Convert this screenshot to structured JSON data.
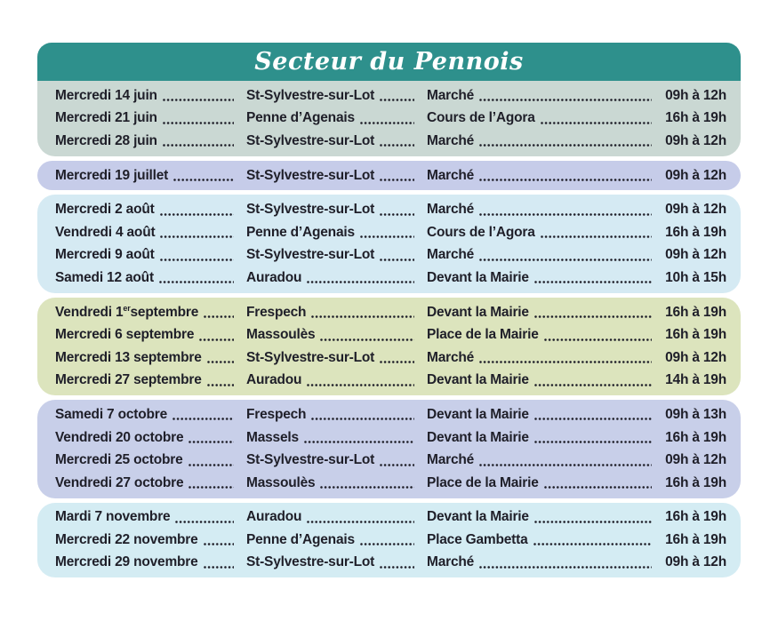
{
  "page": {
    "title": "Secteur du Pennois"
  },
  "colors": {
    "header_bg": "#2e908c",
    "title_text": "#ffffff",
    "row_text": "#1f1f29"
  },
  "sections": [
    {
      "month": "juin",
      "color": "#cad8d3",
      "rows": [
        {
          "date": "Mercredi 14 juin",
          "date_sup": "",
          "date_rest": "",
          "location": "St-Sylvestre-sur-Lot",
          "place": "Marché",
          "time": "09h à 12h"
        },
        {
          "date": "Mercredi 21 juin",
          "date_sup": "",
          "date_rest": "",
          "location": "Penne d’Agenais",
          "place": "Cours de l’Agora",
          "time": "16h à 19h"
        },
        {
          "date": "Mercredi 28 juin",
          "date_sup": "",
          "date_rest": "",
          "location": "St-Sylvestre-sur-Lot",
          "place": "Marché",
          "time": "09h à 12h"
        }
      ]
    },
    {
      "month": "juillet",
      "color": "#c6cce9",
      "rows": [
        {
          "date": "Mercredi 19 juillet",
          "date_sup": "",
          "date_rest": "",
          "location": "St-Sylvestre-sur-Lot",
          "place": "Marché",
          "time": "09h à 12h"
        }
      ]
    },
    {
      "month": "août",
      "color": "#d5eaf3",
      "rows": [
        {
          "date": "Mercredi 2 août",
          "date_sup": "",
          "date_rest": "",
          "location": "St-Sylvestre-sur-Lot",
          "place": "Marché",
          "time": "09h à 12h"
        },
        {
          "date": "Vendredi 4 août",
          "date_sup": "",
          "date_rest": "",
          "location": "Penne d’Agenais",
          "place": "Cours de l’Agora",
          "time": "16h à 19h"
        },
        {
          "date": "Mercredi 9 août",
          "date_sup": "",
          "date_rest": "",
          "location": "St-Sylvestre-sur-Lot",
          "place": "Marché",
          "time": "09h à 12h"
        },
        {
          "date": "Samedi 12 août",
          "date_sup": "",
          "date_rest": "",
          "location": "Auradou",
          "place": "Devant la Mairie",
          "time": "10h à 15h"
        }
      ]
    },
    {
      "month": "septembre",
      "color": "#dce4bd",
      "rows": [
        {
          "date": "Vendredi 1",
          "date_sup": "er",
          "date_rest": " septembre",
          "location": "Frespech",
          "place": "Devant la Mairie",
          "time": "16h à 19h"
        },
        {
          "date": "Mercredi 6 septembre",
          "date_sup": "",
          "date_rest": "",
          "location": "Massoulès",
          "place": "Place de la Mairie",
          "time": "16h à 19h"
        },
        {
          "date": "Mercredi 13 septembre",
          "date_sup": "",
          "date_rest": "",
          "location": "St-Sylvestre-sur-Lot",
          "place": "Marché",
          "time": "09h à 12h"
        },
        {
          "date": "Mercredi 27 septembre",
          "date_sup": "",
          "date_rest": "",
          "location": "Auradou",
          "place": "Devant la Mairie",
          "time": "14h à 19h"
        }
      ]
    },
    {
      "month": "octobre",
      "color": "#c8cfe9",
      "rows": [
        {
          "date": "Samedi 7 octobre",
          "date_sup": "",
          "date_rest": "",
          "location": "Frespech",
          "place": "Devant la Mairie",
          "time": "09h à 13h"
        },
        {
          "date": "Vendredi 20 octobre",
          "date_sup": "",
          "date_rest": "",
          "location": "Massels",
          "place": "Devant la Mairie",
          "time": "16h à 19h"
        },
        {
          "date": "Mercredi 25 octobre",
          "date_sup": "",
          "date_rest": "",
          "location": "St-Sylvestre-sur-Lot",
          "place": "Marché",
          "time": "09h à 12h"
        },
        {
          "date": "Vendredi 27 octobre",
          "date_sup": "",
          "date_rest": "",
          "location": "Massoulès",
          "place": "Place de la Mairie",
          "time": "16h à 19h"
        }
      ]
    },
    {
      "month": "novembre",
      "color": "#d4ecf3",
      "rows": [
        {
          "date": "Mardi 7 novembre",
          "date_sup": "",
          "date_rest": "",
          "location": "Auradou",
          "place": "Devant la Mairie",
          "time": "16h à 19h"
        },
        {
          "date": "Mercredi 22 novembre",
          "date_sup": "",
          "date_rest": "",
          "location": "Penne d’Agenais",
          "place": "Place Gambetta",
          "time": "16h à 19h"
        },
        {
          "date": "Mercredi 29 novembre",
          "date_sup": "",
          "date_rest": "",
          "location": "St-Sylvestre-sur-Lot",
          "place": "Marché",
          "time": "09h à 12h"
        }
      ]
    }
  ]
}
